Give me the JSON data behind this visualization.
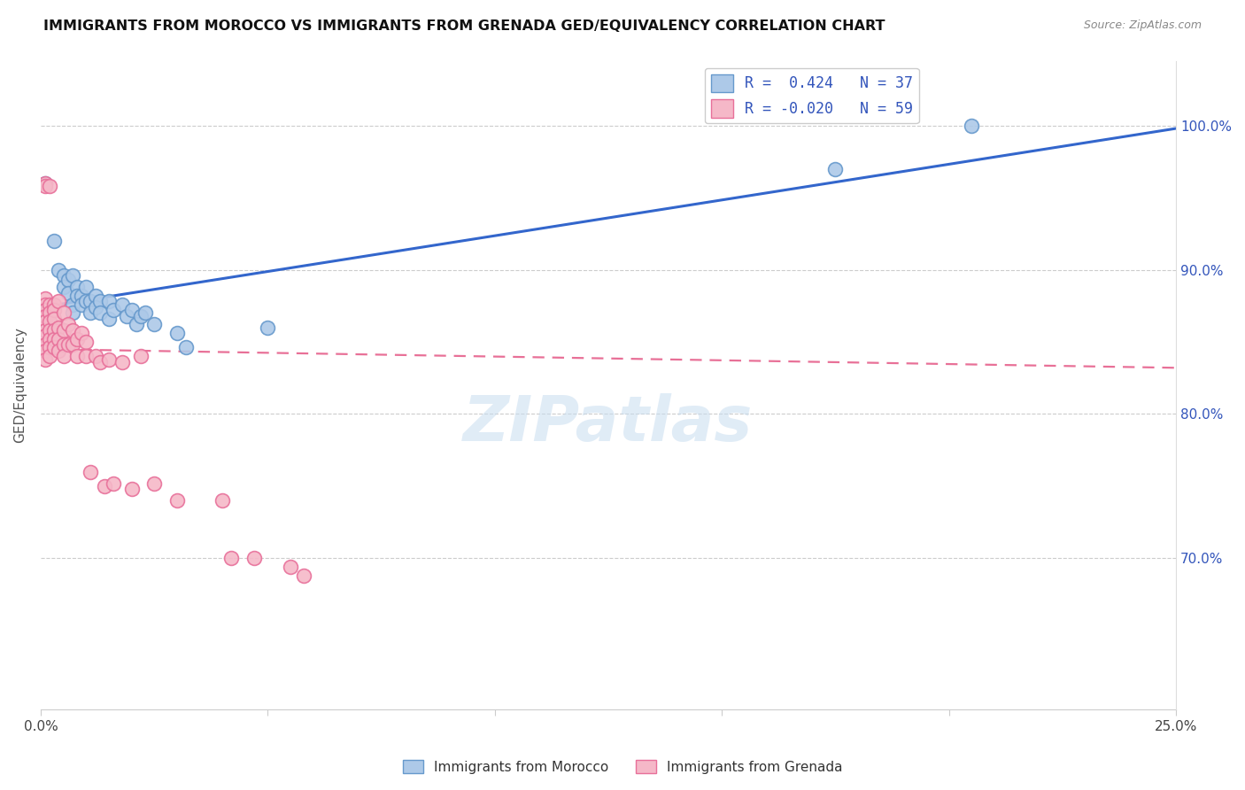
{
  "title": "IMMIGRANTS FROM MOROCCO VS IMMIGRANTS FROM GRENADA GED/EQUIVALENCY CORRELATION CHART",
  "source": "Source: ZipAtlas.com",
  "ylabel": "GED/Equivalency",
  "xlim": [
    0.0,
    0.25
  ],
  "ylim": [
    0.595,
    1.045
  ],
  "morocco_color": "#adc9e8",
  "grenada_color": "#f5b8c8",
  "morocco_edge": "#6699cc",
  "grenada_edge": "#e8709a",
  "line_morocco": "#3366cc",
  "line_grenada": "#e87097",
  "watermark": "ZIPatlas",
  "morocco_line_x": [
    0.0,
    0.25
  ],
  "morocco_line_y": [
    0.874,
    0.998
  ],
  "grenada_line_x": [
    0.0,
    0.25
  ],
  "grenada_line_y": [
    0.845,
    0.832
  ],
  "morocco_points": [
    [
      0.001,
      0.96
    ],
    [
      0.003,
      0.92
    ],
    [
      0.004,
      0.9
    ],
    [
      0.005,
      0.896
    ],
    [
      0.005,
      0.888
    ],
    [
      0.006,
      0.893
    ],
    [
      0.006,
      0.884
    ],
    [
      0.007,
      0.896
    ],
    [
      0.007,
      0.876
    ],
    [
      0.007,
      0.87
    ],
    [
      0.008,
      0.888
    ],
    [
      0.008,
      0.882
    ],
    [
      0.009,
      0.882
    ],
    [
      0.009,
      0.876
    ],
    [
      0.01,
      0.888
    ],
    [
      0.01,
      0.878
    ],
    [
      0.011,
      0.878
    ],
    [
      0.011,
      0.87
    ],
    [
      0.012,
      0.882
    ],
    [
      0.012,
      0.874
    ],
    [
      0.013,
      0.878
    ],
    [
      0.013,
      0.87
    ],
    [
      0.015,
      0.878
    ],
    [
      0.015,
      0.866
    ],
    [
      0.016,
      0.872
    ],
    [
      0.018,
      0.876
    ],
    [
      0.019,
      0.868
    ],
    [
      0.02,
      0.872
    ],
    [
      0.021,
      0.862
    ],
    [
      0.022,
      0.868
    ],
    [
      0.023,
      0.87
    ],
    [
      0.025,
      0.862
    ],
    [
      0.03,
      0.856
    ],
    [
      0.032,
      0.846
    ],
    [
      0.05,
      0.86
    ],
    [
      0.175,
      0.97
    ],
    [
      0.205,
      1.0
    ]
  ],
  "grenada_points": [
    [
      0.001,
      0.96
    ],
    [
      0.001,
      0.958
    ],
    [
      0.001,
      0.88
    ],
    [
      0.001,
      0.876
    ],
    [
      0.001,
      0.872
    ],
    [
      0.001,
      0.868
    ],
    [
      0.001,
      0.864
    ],
    [
      0.001,
      0.858
    ],
    [
      0.001,
      0.854
    ],
    [
      0.001,
      0.848
    ],
    [
      0.001,
      0.844
    ],
    [
      0.001,
      0.838
    ],
    [
      0.002,
      0.958
    ],
    [
      0.002,
      0.876
    ],
    [
      0.002,
      0.87
    ],
    [
      0.002,
      0.864
    ],
    [
      0.002,
      0.858
    ],
    [
      0.002,
      0.852
    ],
    [
      0.002,
      0.846
    ],
    [
      0.002,
      0.84
    ],
    [
      0.003,
      0.876
    ],
    [
      0.003,
      0.872
    ],
    [
      0.003,
      0.866
    ],
    [
      0.003,
      0.858
    ],
    [
      0.003,
      0.852
    ],
    [
      0.003,
      0.846
    ],
    [
      0.004,
      0.878
    ],
    [
      0.004,
      0.86
    ],
    [
      0.004,
      0.852
    ],
    [
      0.004,
      0.844
    ],
    [
      0.005,
      0.87
    ],
    [
      0.005,
      0.858
    ],
    [
      0.005,
      0.848
    ],
    [
      0.005,
      0.84
    ],
    [
      0.006,
      0.862
    ],
    [
      0.006,
      0.848
    ],
    [
      0.007,
      0.858
    ],
    [
      0.007,
      0.848
    ],
    [
      0.008,
      0.852
    ],
    [
      0.008,
      0.84
    ],
    [
      0.009,
      0.856
    ],
    [
      0.01,
      0.85
    ],
    [
      0.01,
      0.84
    ],
    [
      0.011,
      0.76
    ],
    [
      0.012,
      0.84
    ],
    [
      0.013,
      0.836
    ],
    [
      0.014,
      0.75
    ],
    [
      0.015,
      0.838
    ],
    [
      0.016,
      0.752
    ],
    [
      0.018,
      0.836
    ],
    [
      0.02,
      0.748
    ],
    [
      0.022,
      0.84
    ],
    [
      0.025,
      0.752
    ],
    [
      0.03,
      0.74
    ],
    [
      0.04,
      0.74
    ],
    [
      0.042,
      0.7
    ],
    [
      0.047,
      0.7
    ],
    [
      0.055,
      0.694
    ],
    [
      0.058,
      0.688
    ]
  ]
}
